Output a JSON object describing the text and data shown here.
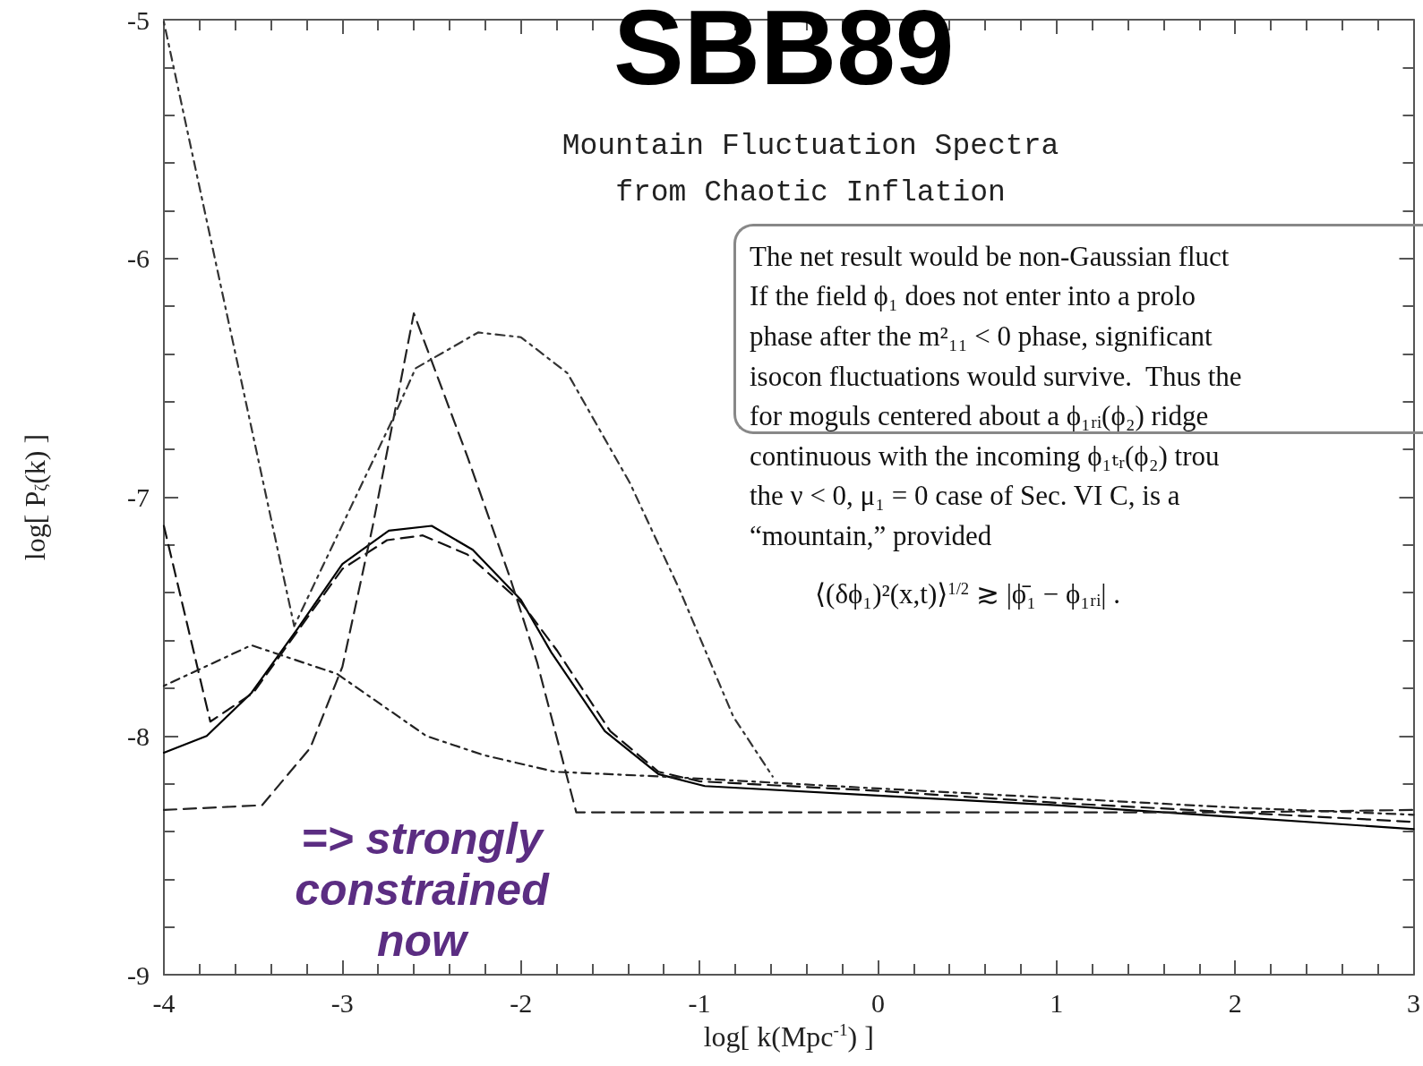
{
  "chart_data": {
    "type": "line",
    "title": "Mountain Fluctuation Spectra\nfrom Chaotic Inflation",
    "xlabel": "log[ k(Mpc$^{-1}$) ]",
    "ylabel": "log[ P$_{ζ}$(k) ]",
    "xlim": [
      -4,
      3
    ],
    "xticks": [
      -4,
      -3,
      -2,
      -1,
      0,
      1,
      2,
      3
    ],
    "ylim": [
      -9,
      -5
    ],
    "yticks": [
      -9,
      -8,
      -7,
      -6,
      -5
    ],
    "marker": "none",
    "series": [
      {
        "color": "#000000",
        "line_style": "solid",
        "x": [
          -4,
          -3.76,
          -3.51,
          -3.25,
          -3.0,
          -2.74,
          -2.5,
          -2.27,
          -2.0,
          -1.83,
          -1.53,
          -1.23,
          -0.97,
          0,
          1,
          2,
          3
        ],
        "values": [
          -8.07,
          -8.0,
          -7.82,
          -7.55,
          -7.28,
          -7.14,
          -7.12,
          -7.22,
          -7.43,
          -7.65,
          -7.98,
          -8.16,
          -8.21,
          -8.25,
          -8.29,
          -8.34,
          -8.39
        ]
      },
      {
        "color": "#111111",
        "line_style": "dashed",
        "x": [
          -4,
          -3.74,
          -3.5,
          -3.0,
          -2.75,
          -2.55,
          -2.3,
          -2.0,
          -1.8,
          -1.5,
          -1.23,
          -1.0,
          0,
          1,
          2,
          3
        ],
        "values": [
          -7.12,
          -7.94,
          -7.82,
          -7.3,
          -7.18,
          -7.16,
          -7.24,
          -7.44,
          -7.64,
          -7.98,
          -8.15,
          -8.19,
          -8.23,
          -8.28,
          -8.32,
          -8.36
        ]
      },
      {
        "color": "#222222",
        "line_style": "dashed",
        "x": [
          -4,
          -3.45,
          -3.18,
          -3.0,
          -2.83,
          -2.6,
          -2.3,
          -2.06,
          -1.91,
          -1.69,
          0,
          1,
          2,
          3
        ],
        "values": [
          -8.31,
          -8.29,
          -8.05,
          -7.71,
          -7.12,
          -6.23,
          -6.83,
          -7.34,
          -7.69,
          -8.32,
          -8.32,
          -8.32,
          -8.32,
          -8.31
        ]
      },
      {
        "color": "#222222",
        "line_style": "dotted",
        "x": [
          -4,
          -3.51,
          -3.03,
          -2.53,
          -2.21,
          -1.81,
          -1.21,
          0,
          1,
          2,
          3
        ],
        "values": [
          -7.79,
          -7.62,
          -7.74,
          -8.0,
          -8.08,
          -8.15,
          -8.17,
          -8.22,
          -8.26,
          -8.3,
          -8.33
        ]
      },
      {
        "color": "#333333",
        "line_style": "dotted",
        "x": [
          -4,
          -3.27,
          -2.71,
          -2.59,
          -2.24,
          -2.0,
          -1.74,
          -1.39,
          -1.11,
          -0.81,
          -0.59
        ],
        "values": [
          -5.01,
          -7.54,
          -6.66,
          -6.46,
          -6.31,
          -6.33,
          -6.48,
          -6.94,
          -7.39,
          -7.92,
          -8.17
        ]
      }
    ],
    "annotations": [
      "SBB89",
      "The net result would be non-Gaussian fluct\nIf the field ϕ₁ does not enter into a prolo\nphase after the m²₁₁ < 0 phase, significant\nisocon fluctuations would survive.  Thus the\nfor moguls centered about a ϕ₁ᵣᵢ(ϕ₂) ridge\ncontinuous with the incoming ϕ₁ₜᵣ(ϕ₂) trou\nthe ν < 0, μ₁ = 0 case of Sec. VI C, is a\n“mountain,” provided",
      "⟨(δϕ₁)²(x,t)⟩$^{1/2}$ ≳ |ϕ̄₁ − ϕ₁ᵣᵢ| .",
      "=> strongly\nconstrained\nnow"
    ]
  }
}
